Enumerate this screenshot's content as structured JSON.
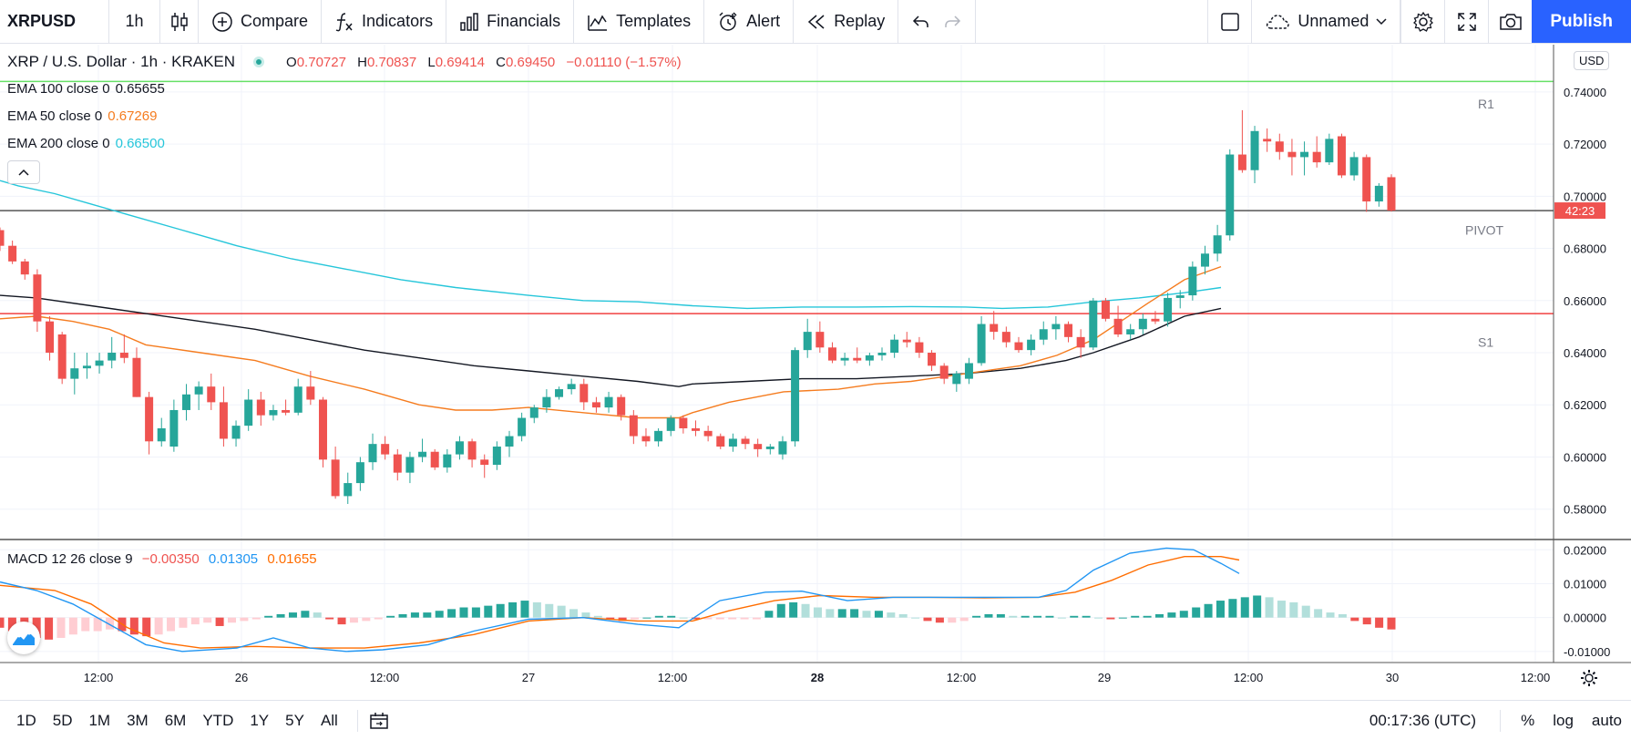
{
  "toolbar": {
    "symbol": "XRPUSD",
    "interval": "1h",
    "compare": "Compare",
    "indicators": "Indicators",
    "financials": "Financials",
    "templates": "Templates",
    "alert": "Alert",
    "replay": "Replay",
    "layout_name": "Unnamed",
    "publish": "Publish"
  },
  "legend": {
    "title": "XRP / U.S. Dollar · 1h · KRAKEN",
    "o_label": "O",
    "o": "0.70727",
    "h_label": "H",
    "h": "0.70837",
    "l_label": "L",
    "l": "0.69414",
    "c_label": "C",
    "c": "0.69450",
    "change": "−0.01110 (−1.57%)"
  },
  "indicators": [
    {
      "label": "EMA 100 close 0",
      "value": "0.65655",
      "color": "#131722"
    },
    {
      "label": "EMA 50 close 0",
      "value": "0.67269",
      "color": "#f57c1f"
    },
    {
      "label": "EMA 200 close 0",
      "value": "0.66500",
      "color": "#26c6da"
    }
  ],
  "macd_legend": {
    "label": "MACD 12 26 close 9",
    "hist": "−0.00350",
    "macd": "0.01305",
    "signal": "0.01655"
  },
  "currency": "USD",
  "countdown": "42:23",
  "pivots": {
    "r1": "R1",
    "pivot": "PIVOT",
    "s1": "S1"
  },
  "colors": {
    "up": "#26a69a",
    "down": "#ef5350",
    "ema100": "#131722",
    "ema50": "#f57c1f",
    "ema200": "#26c6da",
    "macd": "#2196f3",
    "signal": "#ff6d00",
    "accent": "#2962ff"
  },
  "bottom": {
    "ranges": [
      "1D",
      "5D",
      "1M",
      "3M",
      "6M",
      "YTD",
      "1Y",
      "5Y",
      "All"
    ],
    "time": "00:17:36 (UTC)",
    "percent": "%",
    "log": "log",
    "auto": "auto"
  },
  "chart_data": {
    "type": "candlestick",
    "ylim": [
      0.575,
      0.7445
    ],
    "y_ticks": [
      "0.74000",
      "0.72000",
      "0.70000",
      "0.68000",
      "0.66000",
      "0.64000",
      "0.62000",
      "0.60000",
      "0.58000"
    ],
    "x_ticks": [
      "12:00",
      "26",
      "12:00",
      "27",
      "12:00",
      "28",
      "12:00",
      "29",
      "12:00",
      "30",
      "12:00"
    ],
    "levels": {
      "r1": 0.744,
      "pivot": 0.6945,
      "s1": 0.655,
      "last": 0.6945
    },
    "candles": [
      [
        0.687,
        0.688,
        0.679,
        0.681
      ],
      [
        0.681,
        0.683,
        0.674,
        0.675
      ],
      [
        0.675,
        0.676,
        0.668,
        0.67
      ],
      [
        0.67,
        0.672,
        0.648,
        0.652
      ],
      [
        0.652,
        0.654,
        0.637,
        0.64
      ],
      [
        0.647,
        0.648,
        0.628,
        0.63
      ],
      [
        0.63,
        0.64,
        0.624,
        0.634
      ],
      [
        0.634,
        0.64,
        0.63,
        0.635
      ],
      [
        0.635,
        0.64,
        0.632,
        0.637
      ],
      [
        0.637,
        0.646,
        0.634,
        0.64
      ],
      [
        0.64,
        0.647,
        0.636,
        0.638
      ],
      [
        0.638,
        0.642,
        0.623,
        0.623
      ],
      [
        0.623,
        0.625,
        0.601,
        0.606
      ],
      [
        0.606,
        0.615,
        0.604,
        0.611
      ],
      [
        0.604,
        0.622,
        0.602,
        0.618
      ],
      [
        0.618,
        0.628,
        0.614,
        0.624
      ],
      [
        0.624,
        0.629,
        0.618,
        0.627
      ],
      [
        0.627,
        0.632,
        0.618,
        0.621
      ],
      [
        0.621,
        0.627,
        0.604,
        0.607
      ],
      [
        0.607,
        0.614,
        0.604,
        0.612
      ],
      [
        0.612,
        0.626,
        0.61,
        0.622
      ],
      [
        0.622,
        0.625,
        0.612,
        0.616
      ],
      [
        0.616,
        0.62,
        0.614,
        0.618
      ],
      [
        0.618,
        0.622,
        0.616,
        0.617
      ],
      [
        0.617,
        0.63,
        0.616,
        0.627
      ],
      [
        0.627,
        0.633,
        0.62,
        0.622
      ],
      [
        0.622,
        0.623,
        0.596,
        0.599
      ],
      [
        0.599,
        0.604,
        0.584,
        0.585
      ],
      [
        0.585,
        0.594,
        0.582,
        0.59
      ],
      [
        0.59,
        0.6,
        0.587,
        0.598
      ],
      [
        0.598,
        0.609,
        0.595,
        0.605
      ],
      [
        0.605,
        0.608,
        0.599,
        0.601
      ],
      [
        0.601,
        0.603,
        0.591,
        0.594
      ],
      [
        0.594,
        0.602,
        0.59,
        0.6
      ],
      [
        0.6,
        0.607,
        0.598,
        0.602
      ],
      [
        0.602,
        0.603,
        0.595,
        0.596
      ],
      [
        0.596,
        0.603,
        0.594,
        0.601
      ],
      [
        0.601,
        0.608,
        0.599,
        0.606
      ],
      [
        0.606,
        0.607,
        0.596,
        0.599
      ],
      [
        0.599,
        0.601,
        0.592,
        0.597
      ],
      [
        0.597,
        0.606,
        0.595,
        0.604
      ],
      [
        0.604,
        0.61,
        0.6,
        0.608
      ],
      [
        0.608,
        0.617,
        0.606,
        0.615
      ],
      [
        0.615,
        0.62,
        0.613,
        0.619
      ],
      [
        0.619,
        0.626,
        0.617,
        0.623
      ],
      [
        0.623,
        0.627,
        0.622,
        0.626
      ],
      [
        0.626,
        0.63,
        0.624,
        0.628
      ],
      [
        0.628,
        0.63,
        0.618,
        0.621
      ],
      [
        0.621,
        0.623,
        0.617,
        0.619
      ],
      [
        0.619,
        0.625,
        0.617,
        0.623
      ],
      [
        0.623,
        0.624,
        0.614,
        0.616
      ],
      [
        0.616,
        0.618,
        0.605,
        0.608
      ],
      [
        0.608,
        0.611,
        0.604,
        0.606
      ],
      [
        0.606,
        0.611,
        0.604,
        0.61
      ],
      [
        0.61,
        0.616,
        0.608,
        0.615
      ],
      [
        0.615,
        0.616,
        0.609,
        0.611
      ],
      [
        0.611,
        0.614,
        0.608,
        0.61
      ],
      [
        0.61,
        0.612,
        0.606,
        0.608
      ],
      [
        0.608,
        0.609,
        0.603,
        0.604
      ],
      [
        0.604,
        0.609,
        0.602,
        0.607
      ],
      [
        0.607,
        0.608,
        0.603,
        0.605
      ],
      [
        0.605,
        0.607,
        0.6,
        0.603
      ],
      [
        0.603,
        0.605,
        0.601,
        0.604
      ],
      [
        0.601,
        0.608,
        0.599,
        0.606
      ],
      [
        0.606,
        0.642,
        0.604,
        0.641
      ],
      [
        0.641,
        0.653,
        0.638,
        0.648
      ],
      [
        0.648,
        0.652,
        0.64,
        0.642
      ],
      [
        0.642,
        0.644,
        0.636,
        0.637
      ],
      [
        0.637,
        0.64,
        0.635,
        0.638
      ],
      [
        0.638,
        0.642,
        0.636,
        0.637
      ],
      [
        0.637,
        0.64,
        0.635,
        0.639
      ],
      [
        0.639,
        0.642,
        0.637,
        0.64
      ],
      [
        0.64,
        0.647,
        0.638,
        0.645
      ],
      [
        0.645,
        0.648,
        0.642,
        0.644
      ],
      [
        0.644,
        0.646,
        0.638,
        0.64
      ],
      [
        0.64,
        0.641,
        0.633,
        0.635
      ],
      [
        0.635,
        0.636,
        0.628,
        0.63
      ],
      [
        0.628,
        0.633,
        0.625,
        0.632
      ],
      [
        0.63,
        0.638,
        0.628,
        0.636
      ],
      [
        0.636,
        0.654,
        0.635,
        0.651
      ],
      [
        0.651,
        0.656,
        0.645,
        0.648
      ],
      [
        0.648,
        0.65,
        0.642,
        0.644
      ],
      [
        0.644,
        0.646,
        0.64,
        0.641
      ],
      [
        0.641,
        0.647,
        0.639,
        0.645
      ],
      [
        0.645,
        0.652,
        0.643,
        0.649
      ],
      [
        0.649,
        0.654,
        0.645,
        0.651
      ],
      [
        0.651,
        0.652,
        0.644,
        0.646
      ],
      [
        0.646,
        0.649,
        0.638,
        0.642
      ],
      [
        0.642,
        0.661,
        0.641,
        0.66
      ],
      [
        0.66,
        0.661,
        0.652,
        0.653
      ],
      [
        0.653,
        0.658,
        0.646,
        0.647
      ],
      [
        0.647,
        0.651,
        0.645,
        0.649
      ],
      [
        0.649,
        0.655,
        0.647,
        0.653
      ],
      [
        0.653,
        0.656,
        0.651,
        0.652
      ],
      [
        0.652,
        0.663,
        0.65,
        0.661
      ],
      [
        0.661,
        0.664,
        0.657,
        0.662
      ],
      [
        0.662,
        0.675,
        0.66,
        0.673
      ],
      [
        0.673,
        0.681,
        0.67,
        0.678
      ],
      [
        0.678,
        0.689,
        0.675,
        0.685
      ],
      [
        0.685,
        0.718,
        0.683,
        0.716
      ],
      [
        0.716,
        0.733,
        0.709,
        0.71
      ],
      [
        0.71,
        0.727,
        0.705,
        0.725
      ],
      [
        0.722,
        0.726,
        0.717,
        0.721
      ],
      [
        0.721,
        0.724,
        0.714,
        0.717
      ],
      [
        0.717,
        0.722,
        0.708,
        0.715
      ],
      [
        0.715,
        0.721,
        0.708,
        0.717
      ],
      [
        0.717,
        0.723,
        0.711,
        0.713
      ],
      [
        0.713,
        0.724,
        0.712,
        0.722
      ],
      [
        0.723,
        0.724,
        0.707,
        0.708
      ],
      [
        0.708,
        0.717,
        0.706,
        0.715
      ],
      [
        0.715,
        0.716,
        0.694,
        0.698
      ],
      [
        0.698,
        0.705,
        0.696,
        0.704
      ],
      [
        0.7073,
        0.7084,
        0.6941,
        0.6945
      ]
    ],
    "ema200": [
      [
        0,
        0.706
      ],
      [
        20,
        0.704
      ],
      [
        60,
        0.701
      ],
      [
        100,
        0.697
      ],
      [
        140,
        0.693
      ],
      [
        200,
        0.687
      ],
      [
        260,
        0.681
      ],
      [
        320,
        0.676
      ],
      [
        380,
        0.672
      ],
      [
        440,
        0.668
      ],
      [
        500,
        0.665
      ],
      [
        580,
        0.662
      ],
      [
        640,
        0.66
      ],
      [
        700,
        0.6595
      ],
      [
        760,
        0.658
      ],
      [
        820,
        0.657
      ],
      [
        880,
        0.6575
      ],
      [
        940,
        0.6575
      ],
      [
        1000,
        0.6577
      ],
      [
        1060,
        0.6575
      ],
      [
        1100,
        0.657
      ],
      [
        1150,
        0.6575
      ],
      [
        1200,
        0.6595
      ],
      [
        1250,
        0.661
      ],
      [
        1300,
        0.663
      ],
      [
        1340,
        0.665
      ]
    ],
    "ema100": [
      [
        0,
        0.662
      ],
      [
        40,
        0.661
      ],
      [
        100,
        0.658
      ],
      [
        160,
        0.655
      ],
      [
        220,
        0.652
      ],
      [
        280,
        0.649
      ],
      [
        340,
        0.645
      ],
      [
        400,
        0.641
      ],
      [
        460,
        0.638
      ],
      [
        520,
        0.635
      ],
      [
        580,
        0.633
      ],
      [
        640,
        0.631
      ],
      [
        700,
        0.629
      ],
      [
        745,
        0.627
      ],
      [
        760,
        0.628
      ],
      [
        820,
        0.629
      ],
      [
        880,
        0.63
      ],
      [
        940,
        0.63
      ],
      [
        1000,
        0.631
      ],
      [
        1060,
        0.632
      ],
      [
        1120,
        0.634
      ],
      [
        1170,
        0.637
      ],
      [
        1200,
        0.64
      ],
      [
        1250,
        0.646
      ],
      [
        1300,
        0.654
      ],
      [
        1340,
        0.657
      ]
    ],
    "ema50": [
      [
        0,
        0.653
      ],
      [
        40,
        0.654
      ],
      [
        80,
        0.652
      ],
      [
        120,
        0.649
      ],
      [
        160,
        0.643
      ],
      [
        220,
        0.64
      ],
      [
        280,
        0.637
      ],
      [
        340,
        0.631
      ],
      [
        400,
        0.626
      ],
      [
        460,
        0.62
      ],
      [
        500,
        0.618
      ],
      [
        540,
        0.618
      ],
      [
        580,
        0.619
      ],
      [
        640,
        0.617
      ],
      [
        700,
        0.615
      ],
      [
        745,
        0.615
      ],
      [
        760,
        0.617
      ],
      [
        800,
        0.621
      ],
      [
        860,
        0.625
      ],
      [
        920,
        0.626
      ],
      [
        960,
        0.628
      ],
      [
        1000,
        0.629
      ],
      [
        1060,
        0.632
      ],
      [
        1120,
        0.635
      ],
      [
        1160,
        0.639
      ],
      [
        1200,
        0.645
      ],
      [
        1230,
        0.652
      ],
      [
        1260,
        0.659
      ],
      [
        1300,
        0.668
      ],
      [
        1340,
        0.673
      ]
    ],
    "macd": {
      "ylim": [
        -0.013,
        0.0225
      ],
      "y_ticks": [
        "0.02000",
        "0.01000",
        "0.00000",
        "-0.01000"
      ],
      "hist": [
        -0.003,
        -0.004,
        -0.005,
        -0.006,
        -0.0065,
        -0.006,
        -0.005,
        -0.004,
        -0.004,
        -0.0035,
        -0.004,
        -0.005,
        -0.0055,
        -0.005,
        -0.004,
        -0.003,
        -0.002,
        -0.0015,
        -0.0025,
        -0.0015,
        -0.001,
        -0.0005,
        0.0005,
        0.001,
        0.0015,
        0.002,
        0.0015,
        -0.0005,
        -0.002,
        -0.0015,
        -0.001,
        -0.0005,
        0.0005,
        0.001,
        0.0015,
        0.0015,
        0.002,
        0.0025,
        0.003,
        0.003,
        0.0035,
        0.004,
        0.0045,
        0.005,
        0.0045,
        0.004,
        0.0035,
        0.0025,
        0.0015,
        0.0005,
        -0.0005,
        -0.001,
        -0.0005,
        0.0,
        0.0005,
        0.0005,
        0.0,
        -0.0005,
        -0.0005,
        -0.0005,
        -0.0005,
        -0.0005,
        -0.0005,
        0.002,
        0.004,
        0.0045,
        0.004,
        0.003,
        0.0025,
        0.0025,
        0.0025,
        0.002,
        0.002,
        0.0015,
        0.001,
        0.0,
        -0.001,
        -0.0015,
        -0.0015,
        -0.001,
        0.0005,
        0.001,
        0.001,
        0.0005,
        0.0005,
        0.0005,
        0.0005,
        0.0,
        0.0005,
        0.0005,
        0.0,
        -0.0005,
        0.0,
        0.0005,
        0.0005,
        0.001,
        0.0015,
        0.002,
        0.003,
        0.004,
        0.005,
        0.0055,
        0.006,
        0.0065,
        0.006,
        0.005,
        0.0045,
        0.0035,
        0.0025,
        0.0015,
        0.001,
        -0.001,
        -0.002,
        -0.003,
        -0.0035
      ],
      "macd_line": [
        [
          0,
          0.0105
        ],
        [
          40,
          0.008
        ],
        [
          80,
          0.004
        ],
        [
          120,
          -0.002
        ],
        [
          160,
          -0.008
        ],
        [
          200,
          -0.01
        ],
        [
          260,
          -0.009
        ],
        [
          300,
          -0.006
        ],
        [
          340,
          -0.009
        ],
        [
          380,
          -0.01
        ],
        [
          420,
          -0.0095
        ],
        [
          470,
          -0.008
        ],
        [
          520,
          -0.004
        ],
        [
          580,
          -0.0005
        ],
        [
          640,
          0.0
        ],
        [
          700,
          -0.002
        ],
        [
          745,
          -0.003
        ],
        [
          790,
          0.005
        ],
        [
          840,
          0.0075
        ],
        [
          880,
          0.0078
        ],
        [
          930,
          0.005
        ],
        [
          980,
          0.006
        ],
        [
          1040,
          0.006
        ],
        [
          1080,
          0.006
        ],
        [
          1140,
          0.006
        ],
        [
          1170,
          0.008
        ],
        [
          1200,
          0.014
        ],
        [
          1240,
          0.019
        ],
        [
          1280,
          0.0205
        ],
        [
          1310,
          0.02
        ],
        [
          1340,
          0.016
        ],
        [
          1360,
          0.013
        ]
      ],
      "signal_line": [
        [
          0,
          0.0095
        ],
        [
          60,
          0.008
        ],
        [
          100,
          0.004
        ],
        [
          140,
          -0.003
        ],
        [
          180,
          -0.0075
        ],
        [
          220,
          -0.009
        ],
        [
          280,
          -0.0085
        ],
        [
          340,
          -0.009
        ],
        [
          400,
          -0.009
        ],
        [
          460,
          -0.0075
        ],
        [
          520,
          -0.005
        ],
        [
          580,
          -0.001
        ],
        [
          640,
          0.0
        ],
        [
          700,
          -0.001
        ],
        [
          760,
          -0.001
        ],
        [
          800,
          0.002
        ],
        [
          850,
          0.005
        ],
        [
          900,
          0.0065
        ],
        [
          960,
          0.006
        ],
        [
          1020,
          0.006
        ],
        [
          1080,
          0.0058
        ],
        [
          1140,
          0.006
        ],
        [
          1180,
          0.0075
        ],
        [
          1220,
          0.011
        ],
        [
          1260,
          0.0155
        ],
        [
          1300,
          0.018
        ],
        [
          1340,
          0.018
        ],
        [
          1360,
          0.017
        ]
      ]
    }
  }
}
